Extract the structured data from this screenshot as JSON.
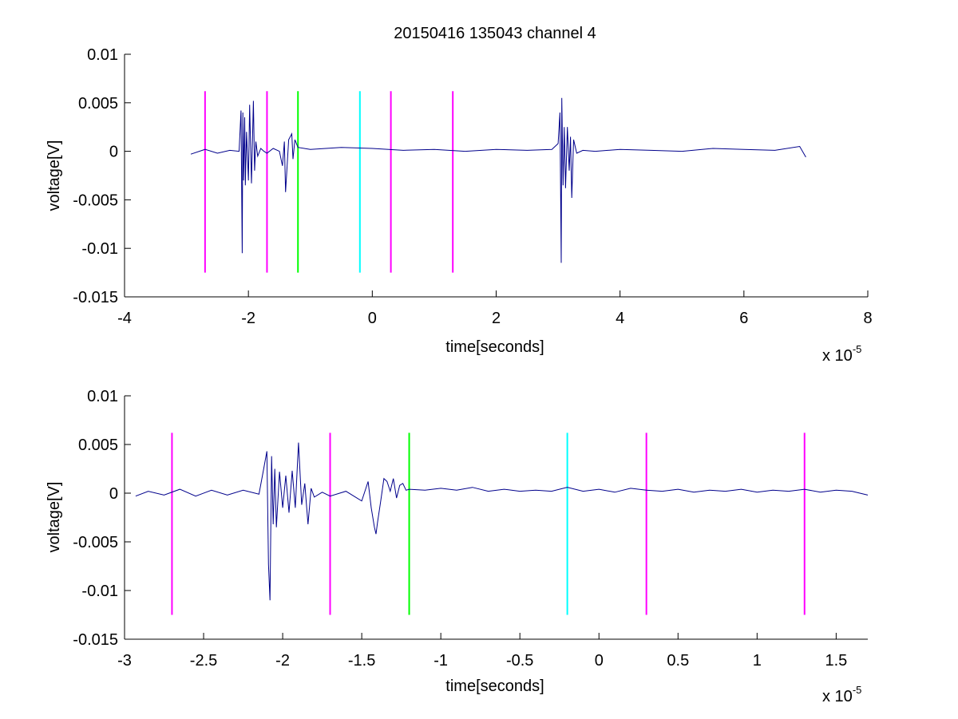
{
  "chart_data": [
    {
      "type": "line",
      "title": "20150416 135043 channel 4",
      "xlabel": "time[seconds]",
      "ylabel": "voltage[V]",
      "x_multiplier": "x 10",
      "x_exponent": "-5",
      "xlim": [
        -4,
        8
      ],
      "ylim": [
        -0.015,
        0.01
      ],
      "xticks": [
        -4,
        -2,
        0,
        2,
        4,
        6,
        8
      ],
      "xtick_labels": [
        "-4",
        "-2",
        "0",
        "2",
        "4",
        "6",
        "8"
      ],
      "yticks": [
        0.01,
        0.005,
        0,
        -0.005,
        -0.01,
        -0.015
      ],
      "ytick_labels": [
        "0.01",
        "0.005",
        "0",
        "-0.005",
        "-0.01",
        "-0.015"
      ],
      "grid": false,
      "series": [
        {
          "color": "#00008b",
          "x": [
            -2.93,
            -2.7,
            -2.5,
            -2.3,
            -2.15,
            -2.12,
            -2.1,
            -2.09,
            -2.08,
            -2.06,
            -2.05,
            -2.03,
            -2.0,
            -1.98,
            -1.95,
            -1.92,
            -1.9,
            -1.88,
            -1.85,
            -1.8,
            -1.75,
            -1.7,
            -1.6,
            -1.5,
            -1.45,
            -1.42,
            -1.4,
            -1.38,
            -1.35,
            -1.3,
            -1.28,
            -1.25,
            -1.2,
            -1.0,
            -0.5,
            0.0,
            0.5,
            1.0,
            1.5,
            2.0,
            2.5,
            2.9,
            3.0,
            3.03,
            3.05,
            3.06,
            3.08,
            3.1,
            3.12,
            3.15,
            3.18,
            3.2,
            3.22,
            3.25,
            3.3,
            3.4,
            3.6,
            4.0,
            4.5,
            5.0,
            5.5,
            6.0,
            6.5,
            6.9,
            7.0
          ],
          "y": [
            -0.0003,
            0.0002,
            -0.0002,
            0.0001,
            0.0,
            0.0042,
            -0.0105,
            0.004,
            -0.003,
            0.0035,
            -0.0035,
            0.002,
            -0.003,
            0.0048,
            -0.0033,
            0.0052,
            -0.002,
            0.001,
            -0.0005,
            0.0003,
            0.0,
            -0.0002,
            0.0003,
            0.0,
            -0.0015,
            0.001,
            -0.0042,
            -0.002,
            0.0012,
            0.0018,
            -0.0008,
            0.0012,
            0.0004,
            0.0002,
            0.0004,
            0.0003,
            0.0001,
            0.0002,
            0.0,
            0.0002,
            0.0001,
            0.0002,
            0.0008,
            0.004,
            -0.0115,
            0.0055,
            -0.0035,
            0.0025,
            -0.0038,
            0.0025,
            -0.002,
            0.0015,
            -0.0048,
            0.0012,
            -0.0002,
            0.0001,
            0.0,
            0.0002,
            0.0001,
            0.0,
            0.0003,
            0.0002,
            0.0001,
            0.0005,
            -0.0006
          ]
        }
      ],
      "markers": [
        {
          "x": -2.7,
          "color": "#ff00ff"
        },
        {
          "x": -1.7,
          "color": "#ff00ff"
        },
        {
          "x": -1.2,
          "color": "#00ff00"
        },
        {
          "x": -0.2,
          "color": "#00ffff"
        },
        {
          "x": 0.3,
          "color": "#ff00ff"
        },
        {
          "x": 1.3,
          "color": "#ff00ff"
        }
      ],
      "marker_range": [
        -0.0125,
        0.0062
      ]
    },
    {
      "type": "line",
      "title": "",
      "xlabel": "time[seconds]",
      "ylabel": "voltage[V]",
      "x_multiplier": "x 10",
      "x_exponent": "-5",
      "xlim": [
        -3.0,
        1.7
      ],
      "ylim": [
        -0.015,
        0.01
      ],
      "xticks": [
        -3,
        -2.5,
        -2,
        -1.5,
        -1,
        -0.5,
        0,
        0.5,
        1,
        1.5
      ],
      "xtick_labels": [
        "-3",
        "-2.5",
        "-2",
        "-1.5",
        "-1",
        "-0.5",
        "0",
        "0.5",
        "1",
        "1.5"
      ],
      "yticks": [
        0.01,
        0.005,
        0,
        -0.005,
        -0.01,
        -0.015
      ],
      "ytick_labels": [
        "0.01",
        "0.005",
        "0",
        "-0.005",
        "-0.01",
        "-0.015"
      ],
      "grid": false,
      "series": [
        {
          "color": "#00008b",
          "x": [
            -2.93,
            -2.85,
            -2.75,
            -2.65,
            -2.55,
            -2.45,
            -2.35,
            -2.25,
            -2.15,
            -2.12,
            -2.1,
            -2.09,
            -2.08,
            -2.07,
            -2.06,
            -2.05,
            -2.04,
            -2.02,
            -2.0,
            -1.98,
            -1.96,
            -1.94,
            -1.92,
            -1.9,
            -1.88,
            -1.86,
            -1.84,
            -1.82,
            -1.8,
            -1.75,
            -1.7,
            -1.6,
            -1.55,
            -1.5,
            -1.46,
            -1.44,
            -1.42,
            -1.41,
            -1.4,
            -1.38,
            -1.36,
            -1.34,
            -1.32,
            -1.3,
            -1.28,
            -1.26,
            -1.24,
            -1.22,
            -1.2,
            -1.1,
            -1.0,
            -0.9,
            -0.8,
            -0.7,
            -0.6,
            -0.5,
            -0.4,
            -0.3,
            -0.2,
            -0.1,
            0.0,
            0.1,
            0.2,
            0.3,
            0.4,
            0.5,
            0.6,
            0.7,
            0.8,
            0.9,
            1.0,
            1.1,
            1.2,
            1.3,
            1.4,
            1.5,
            1.6,
            1.7
          ],
          "y": [
            -0.0003,
            0.0002,
            -0.0002,
            0.0004,
            -0.0003,
            0.0003,
            -0.0002,
            0.0003,
            -0.0001,
            0.0025,
            0.0043,
            -0.0073,
            -0.011,
            0.0038,
            -0.0032,
            0.0025,
            -0.0035,
            0.0022,
            -0.0015,
            0.0018,
            -0.002,
            0.0023,
            -0.0015,
            0.0052,
            -0.0012,
            0.001,
            -0.0032,
            0.0005,
            -0.0004,
            0.0001,
            -0.0003,
            0.0002,
            -0.0003,
            -0.0008,
            0.0012,
            -0.0015,
            -0.0035,
            -0.0042,
            -0.003,
            -0.0008,
            0.0015,
            0.0012,
            0.0002,
            0.0015,
            -0.0005,
            0.0008,
            0.001,
            0.0003,
            0.0004,
            0.0003,
            0.0005,
            0.0003,
            0.0006,
            0.0002,
            0.0004,
            0.0002,
            0.0003,
            0.0002,
            0.0006,
            0.0002,
            0.0004,
            0.0001,
            0.0005,
            0.0003,
            0.0002,
            0.0004,
            0.0001,
            0.0003,
            0.0002,
            0.0004,
            0.0001,
            0.0003,
            0.0002,
            0.0004,
            0.0001,
            0.0003,
            0.0002,
            -0.0002
          ]
        }
      ],
      "markers": [
        {
          "x": -2.7,
          "color": "#ff00ff"
        },
        {
          "x": -1.7,
          "color": "#ff00ff"
        },
        {
          "x": -1.2,
          "color": "#00ff00"
        },
        {
          "x": -0.2,
          "color": "#00ffff"
        },
        {
          "x": 0.3,
          "color": "#ff00ff"
        },
        {
          "x": 1.3,
          "color": "#ff00ff"
        }
      ],
      "marker_range": [
        -0.0125,
        0.0062
      ]
    }
  ]
}
